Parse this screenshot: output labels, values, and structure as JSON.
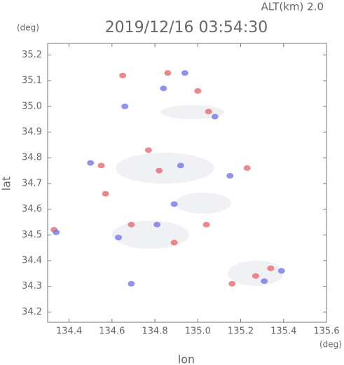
{
  "chart_data": {
    "type": "scatter",
    "title": "2019/12/16 03:54:30",
    "subtitle": "ALT(km) 2.0",
    "y_unit": "(deg)",
    "x_unit": "(deg)",
    "xlabel": "lon",
    "ylabel": "lat",
    "xlim": [
      134.3,
      135.6
    ],
    "ylim": [
      34.16,
      35.245
    ],
    "xticks": [
      134.4,
      134.6,
      134.8,
      {
        "value": 135.0,
        "label": "135.0"
      },
      135.2,
      135.4,
      135.6
    ],
    "yticks": [
      34.2,
      34.3,
      34.4,
      34.5,
      34.6,
      34.7,
      34.8,
      34.9,
      {
        "value": 35.0,
        "label": "35.0"
      },
      35.1,
      35.2
    ],
    "series": [
      {
        "color": "#e8737a",
        "x": [
          134.33,
          134.57,
          134.55,
          134.65,
          134.86,
          134.82,
          134.77,
          134.69,
          135.05,
          135.23,
          135.34,
          135.16,
          135.27,
          135.04,
          134.89,
          135.0
        ],
        "values": [
          34.52,
          34.66,
          34.77,
          35.12,
          35.13,
          34.75,
          34.83,
          34.54,
          34.98,
          34.76,
          34.37,
          34.31,
          34.34,
          34.54,
          34.47,
          35.06
        ]
      },
      {
        "color": "#7f7fe8",
        "x": [
          134.34,
          134.5,
          134.69,
          134.94,
          134.66,
          135.08,
          135.39,
          135.31,
          134.81,
          135.15,
          134.89,
          134.84,
          134.63,
          134.92
        ],
        "values": [
          34.51,
          34.78,
          34.31,
          35.13,
          35.0,
          34.96,
          34.36,
          34.32,
          34.54,
          34.73,
          34.62,
          35.07,
          34.49,
          34.77
        ]
      }
    ]
  }
}
